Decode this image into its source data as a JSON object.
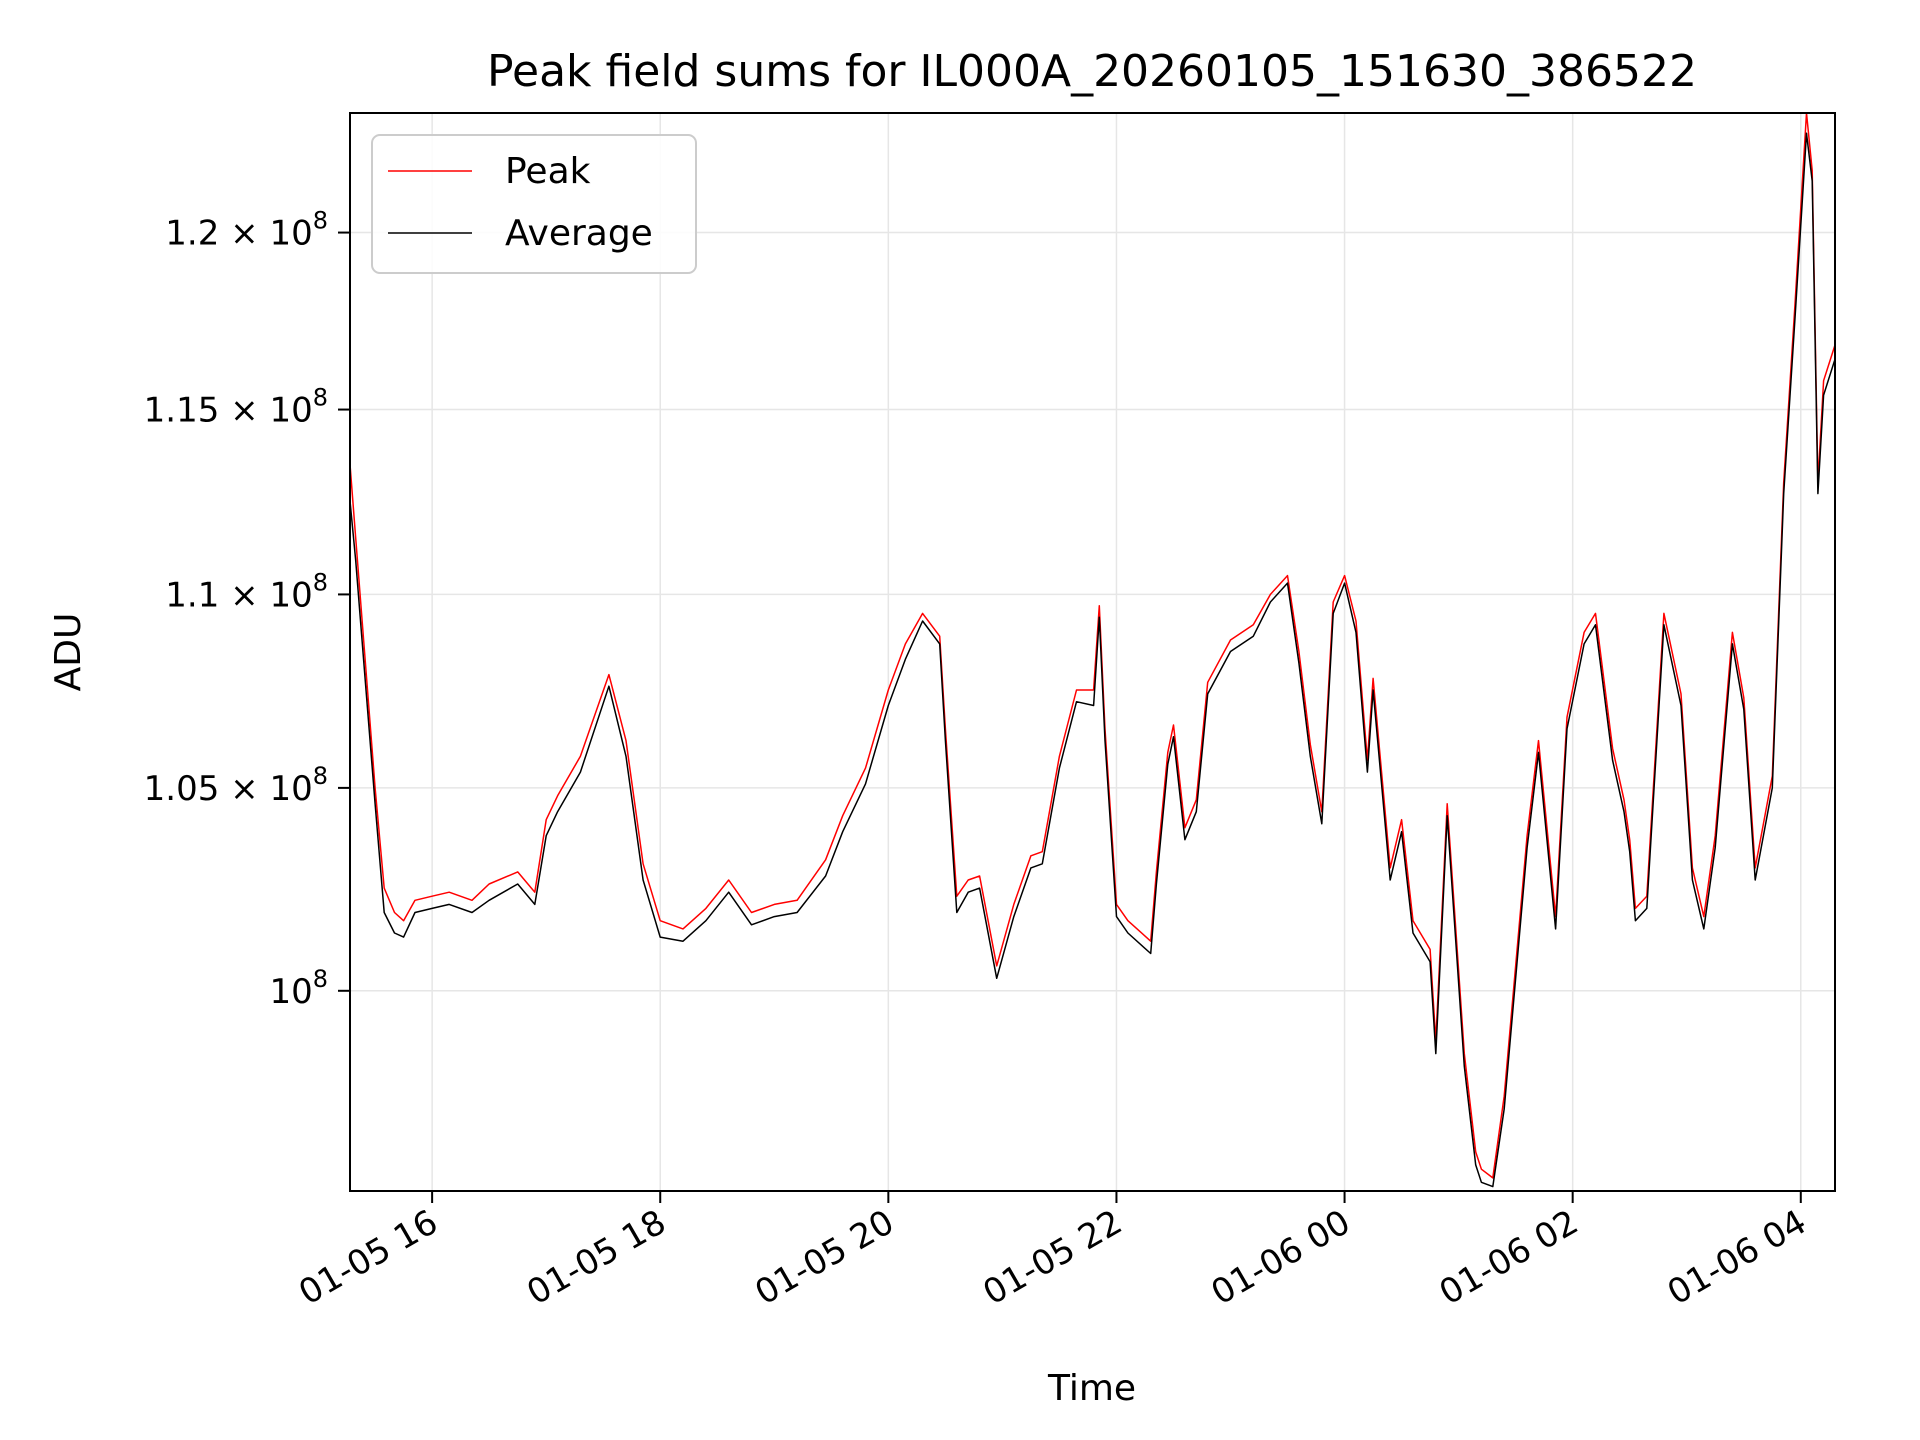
{
  "chart_data": {
    "type": "line",
    "title": "Peak field sums for IL000A_20260105_151630_386522",
    "xlabel": "Time",
    "ylabel": "ADU",
    "yscale": "log",
    "grid": true,
    "legend_position": "top-left",
    "colors": {
      "peak": "#ff0000",
      "average": "#000000",
      "grid": "#e6e6e6"
    },
    "xlim_hours": [
      15.28,
      28.3
    ],
    "ylim": [
      95300000,
      123500000
    ],
    "x_ticks": [
      {
        "hour": 16,
        "label": "01-05 16"
      },
      {
        "hour": 18,
        "label": "01-05 18"
      },
      {
        "hour": 20,
        "label": "01-05 20"
      },
      {
        "hour": 22,
        "label": "01-05 22"
      },
      {
        "hour": 24,
        "label": "01-06 00"
      },
      {
        "hour": 26,
        "label": "01-06 02"
      },
      {
        "hour": 28,
        "label": "01-06 04"
      }
    ],
    "y_ticks": [
      {
        "value": 100000000,
        "label": "10",
        "exponent": "8"
      },
      {
        "value": 105000000,
        "label": "1.05 × 10",
        "exponent": "8"
      },
      {
        "value": 110000000,
        "label": "1.1 × 10",
        "exponent": "8"
      },
      {
        "value": 115000000,
        "label": "1.15 × 10",
        "exponent": "8"
      },
      {
        "value": 120000000,
        "label": "1.2 × 10",
        "exponent": "8"
      }
    ],
    "series": [
      {
        "name": "Peak",
        "x_hours": [
          15.28,
          15.33,
          15.42,
          15.5,
          15.58,
          15.67,
          15.75,
          15.85,
          16.0,
          16.15,
          16.35,
          16.5,
          16.75,
          16.9,
          17.0,
          17.1,
          17.3,
          17.55,
          17.7,
          17.85,
          18.0,
          18.2,
          18.4,
          18.6,
          18.8,
          19.0,
          19.2,
          19.45,
          19.6,
          19.8,
          20.0,
          20.15,
          20.3,
          20.45,
          20.5,
          20.6,
          20.7,
          20.8,
          20.95,
          21.1,
          21.25,
          21.35,
          21.5,
          21.65,
          21.8,
          21.85,
          21.9,
          22.0,
          22.1,
          22.3,
          22.35,
          22.45,
          22.5,
          22.6,
          22.7,
          22.8,
          23.0,
          23.2,
          23.35,
          23.5,
          23.6,
          23.7,
          23.8,
          23.9,
          24.0,
          24.1,
          24.2,
          24.25,
          24.4,
          24.5,
          24.6,
          24.75,
          24.8,
          24.9,
          25.05,
          25.15,
          25.2,
          25.3,
          25.4,
          25.6,
          25.7,
          25.85,
          25.95,
          26.1,
          26.2,
          26.35,
          26.45,
          26.5,
          26.55,
          26.65,
          26.8,
          26.95,
          27.05,
          27.15,
          27.25,
          27.4,
          27.5,
          27.6,
          27.75,
          27.85,
          27.95,
          28.05,
          28.1,
          28.15,
          28.2,
          28.3
        ],
        "y": [
          113500000,
          111500000,
          108000000,
          105000000,
          102500000,
          101900000,
          101700000,
          102200000,
          102300000,
          102400000,
          102200000,
          102600000,
          102900000,
          102400000,
          104200000,
          104800000,
          105800000,
          107900000,
          106200000,
          103100000,
          101700000,
          101500000,
          102000000,
          102700000,
          101900000,
          102100000,
          102200000,
          103200000,
          104300000,
          105500000,
          107500000,
          108700000,
          109500000,
          108900000,
          106500000,
          102300000,
          102700000,
          102800000,
          100600000,
          102100000,
          103300000,
          103400000,
          105800000,
          107500000,
          107500000,
          109700000,
          106500000,
          102100000,
          101700000,
          101200000,
          102900000,
          105900000,
          106600000,
          104000000,
          104700000,
          107700000,
          108800000,
          109200000,
          110000000,
          110500000,
          108500000,
          106100000,
          104400000,
          109800000,
          110500000,
          109300000,
          105700000,
          107800000,
          103000000,
          104200000,
          101700000,
          101000000,
          98800000,
          104600000,
          98500000,
          96200000,
          95800000,
          95600000,
          97500000,
          103800000,
          106200000,
          101800000,
          106800000,
          109000000,
          109500000,
          106000000,
          104700000,
          103700000,
          102000000,
          102300000,
          109500000,
          107400000,
          103000000,
          101800000,
          103800000,
          109000000,
          107300000,
          103000000,
          105300000,
          113000000,
          118000000,
          123500000,
          121800000,
          113000000,
          115800000,
          116800000
        ]
      },
      {
        "name": "Average",
        "x_hours": [
          15.28,
          15.33,
          15.42,
          15.5,
          15.58,
          15.67,
          15.75,
          15.85,
          16.0,
          16.15,
          16.35,
          16.5,
          16.75,
          16.9,
          17.0,
          17.1,
          17.3,
          17.55,
          17.7,
          17.85,
          18.0,
          18.2,
          18.4,
          18.6,
          18.8,
          19.0,
          19.2,
          19.45,
          19.6,
          19.8,
          20.0,
          20.15,
          20.3,
          20.45,
          20.5,
          20.6,
          20.7,
          20.8,
          20.95,
          21.1,
          21.25,
          21.35,
          21.5,
          21.65,
          21.8,
          21.85,
          21.9,
          22.0,
          22.1,
          22.3,
          22.35,
          22.45,
          22.5,
          22.6,
          22.7,
          22.8,
          23.0,
          23.2,
          23.35,
          23.5,
          23.6,
          23.7,
          23.8,
          23.9,
          24.0,
          24.1,
          24.2,
          24.25,
          24.4,
          24.5,
          24.6,
          24.75,
          24.8,
          24.9,
          25.05,
          25.15,
          25.2,
          25.3,
          25.4,
          25.6,
          25.7,
          25.85,
          25.95,
          26.1,
          26.2,
          26.35,
          26.45,
          26.5,
          26.55,
          26.65,
          26.8,
          26.95,
          27.05,
          27.15,
          27.25,
          27.4,
          27.5,
          27.6,
          27.75,
          27.85,
          27.95,
          28.05,
          28.1,
          28.15,
          28.2,
          28.3
        ],
        "y": [
          112500000,
          110900000,
          107500000,
          104600000,
          101900000,
          101400000,
          101300000,
          101900000,
          102000000,
          102100000,
          101900000,
          102200000,
          102600000,
          102100000,
          103800000,
          104400000,
          105400000,
          107600000,
          105800000,
          102700000,
          101300000,
          101200000,
          101700000,
          102400000,
          101600000,
          101800000,
          101900000,
          102800000,
          103900000,
          105100000,
          107100000,
          108300000,
          109300000,
          108700000,
          106200000,
          101900000,
          102400000,
          102500000,
          100300000,
          101800000,
          103000000,
          103100000,
          105500000,
          107200000,
          107100000,
          109400000,
          106200000,
          101800000,
          101400000,
          100900000,
          102600000,
          105600000,
          106300000,
          103700000,
          104400000,
          107400000,
          108500000,
          108900000,
          109800000,
          110300000,
          108200000,
          105800000,
          104100000,
          109500000,
          110300000,
          109000000,
          105400000,
          107500000,
          102700000,
          103900000,
          101400000,
          100700000,
          98500000,
          104300000,
          98200000,
          95900000,
          95500000,
          95400000,
          97200000,
          103500000,
          105900000,
          101500000,
          106500000,
          108700000,
          109200000,
          105700000,
          104400000,
          103400000,
          101700000,
          102000000,
          109200000,
          107100000,
          102700000,
          101500000,
          103500000,
          108700000,
          107000000,
          102700000,
          105000000,
          112700000,
          117600000,
          122900000,
          121500000,
          112700000,
          115400000,
          116400000
        ]
      }
    ]
  }
}
